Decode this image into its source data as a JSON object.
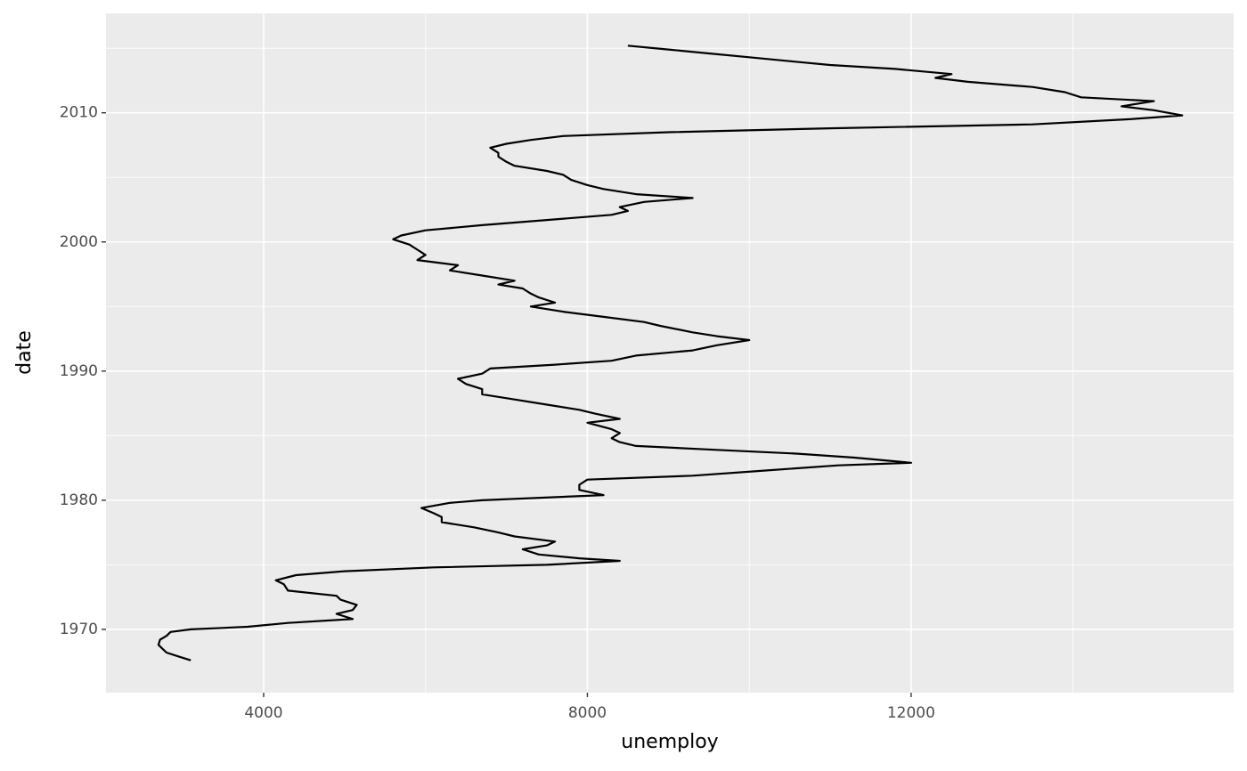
{
  "chart_data": {
    "type": "line",
    "orientation": "y",
    "x_label": "unemploy",
    "y_label": "date",
    "xlim": [
      2052,
      15985
    ],
    "ylim": [
      1965.1,
      2017.7
    ],
    "xticks": [
      4000,
      8000,
      12000
    ],
    "xminor": [
      6000,
      10000,
      14000
    ],
    "yticks": [
      1970,
      1980,
      1990,
      2000,
      2010
    ],
    "yminor": [
      1975,
      1985,
      1995,
      2005,
      2015
    ],
    "grid": true,
    "background": "#ebebeb",
    "y": [
      1967.6,
      1967.9,
      1968.2,
      1968.5,
      1968.8,
      1969.2,
      1969.5,
      1969.8,
      1970.0,
      1970.2,
      1970.5,
      1970.8,
      1971.2,
      1971.5,
      1971.9,
      1972.3,
      1972.6,
      1973.0,
      1973.5,
      1973.8,
      1974.2,
      1974.5,
      1974.8,
      1975.0,
      1975.3,
      1975.5,
      1975.8,
      1976.2,
      1976.5,
      1976.8,
      1977.2,
      1977.5,
      1977.9,
      1978.3,
      1978.7,
      1979.0,
      1979.4,
      1979.8,
      1980.0,
      1980.4,
      1980.8,
      1981.2,
      1981.6,
      1981.9,
      1982.3,
      1982.7,
      1982.9,
      1983.3,
      1983.6,
      1983.9,
      1984.2,
      1984.5,
      1984.8,
      1985.2,
      1985.5,
      1986.0,
      1986.3,
      1986.7,
      1987.0,
      1987.4,
      1987.8,
      1988.2,
      1988.6,
      1989.0,
      1989.4,
      1989.8,
      1990.2,
      1990.5,
      1990.8,
      1991.2,
      1991.6,
      1992.0,
      1992.4,
      1992.7,
      1993.0,
      1993.5,
      1993.8,
      1994.2,
      1994.6,
      1995.0,
      1995.3,
      1995.7,
      1996.0,
      1996.4,
      1996.7,
      1997.0,
      1997.4,
      1997.8,
      1998.2,
      1998.6,
      1999.0,
      1999.4,
      1999.8,
      2000.2,
      2000.5,
      2000.9,
      2001.3,
      2001.7,
      2002.1,
      2002.4,
      2002.7,
      2003.1,
      2003.4,
      2003.7,
      2004.1,
      2004.4,
      2004.8,
      2005.2,
      2005.5,
      2005.9,
      2006.2,
      2006.6,
      2006.9,
      2007.3,
      2007.6,
      2007.9,
      2008.2,
      2008.5,
      2008.8,
      2009.1,
      2009.5,
      2009.8,
      2010.2,
      2010.5,
      2010.9,
      2011.2,
      2011.6,
      2012.0,
      2012.4,
      2012.7,
      2013.0,
      2013.4,
      2013.7,
      2014.0,
      2014.3,
      2014.6,
      2014.9,
      2015.2
    ],
    "series": [
      {
        "color": "#000000",
        "values": [
          3100,
          2950,
          2800,
          2750,
          2700,
          2720,
          2800,
          2850,
          3100,
          3800,
          4300,
          5100,
          4900,
          5100,
          5150,
          4950,
          4900,
          4300,
          4250,
          4150,
          4400,
          5000,
          6100,
          7500,
          8400,
          7900,
          7400,
          7200,
          7500,
          7600,
          7100,
          6900,
          6600,
          6200,
          6200,
          6100,
          5950,
          6300,
          6700,
          8200,
          7900,
          7900,
          8000,
          9300,
          10200,
          11100,
          12000,
          11300,
          10600,
          9600,
          8600,
          8400,
          8300,
          8400,
          8300,
          8000,
          8400,
          8100,
          7900,
          7500,
          7100,
          6700,
          6700,
          6500,
          6400,
          6700,
          6800,
          7600,
          8300,
          8600,
          9300,
          9600,
          10000,
          9600,
          9300,
          8900,
          8700,
          8200,
          7700,
          7300,
          7600,
          7400,
          7300,
          7200,
          6900,
          7100,
          6700,
          6300,
          6400,
          5900,
          6000,
          5900,
          5800,
          5600,
          5700,
          6000,
          6700,
          7500,
          8300,
          8500,
          8400,
          8700,
          9300,
          8600,
          8200,
          8000,
          7800,
          7700,
          7500,
          7100,
          7000,
          6900,
          6900,
          6800,
          7000,
          7300,
          7700,
          9000,
          11000,
          13500,
          14700,
          15350,
          15000,
          14600,
          15000,
          14100,
          13900,
          13500,
          12700,
          12300,
          12500,
          11800,
          11000,
          10500,
          10000,
          9500,
          9000,
          8500
        ]
      }
    ]
  }
}
